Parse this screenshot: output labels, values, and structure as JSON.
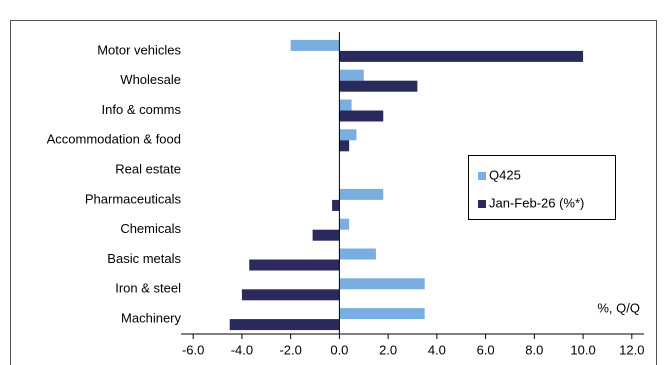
{
  "chart_data": {
    "type": "bar",
    "orientation": "horizontal",
    "categories": [
      "Motor vehicles",
      "Wholesale",
      "Info & comms",
      "Accommodation & food",
      "Real estate",
      "Pharmaceuticals",
      "Chemicals",
      "Basic metals",
      "Iron & steel",
      "Machinery"
    ],
    "series": [
      {
        "name": "Q425",
        "color": "#7aaee0",
        "values": [
          -2.0,
          1.0,
          0.5,
          0.7,
          0,
          1.8,
          0.4,
          1.5,
          3.5,
          3.5
        ]
      },
      {
        "name": "Jan-Feb-26 (%*)",
        "color": "#2b2a5c",
        "values": [
          10.0,
          3.2,
          1.8,
          0.4,
          0,
          -0.3,
          -1.1,
          -3.7,
          -4.0,
          -4.5
        ]
      }
    ],
    "xlim": [
      -6.5,
      12.5
    ],
    "xticks": [
      {
        "value": -6,
        "label": "-6.0"
      },
      {
        "value": -4,
        "label": "-4.0"
      },
      {
        "value": -2,
        "label": "-2.0"
      },
      {
        "value": 0,
        "label": "0.0"
      },
      {
        "value": 2,
        "label": "2.0"
      },
      {
        "value": 4,
        "label": "4.0"
      },
      {
        "value": 6,
        "label": "6.0"
      },
      {
        "value": 8,
        "label": "8.0"
      },
      {
        "value": 10,
        "label": "10.0"
      },
      {
        "value": 12,
        "label": "12.0"
      }
    ],
    "annotation": "%, Q/Q",
    "legend": "right"
  }
}
